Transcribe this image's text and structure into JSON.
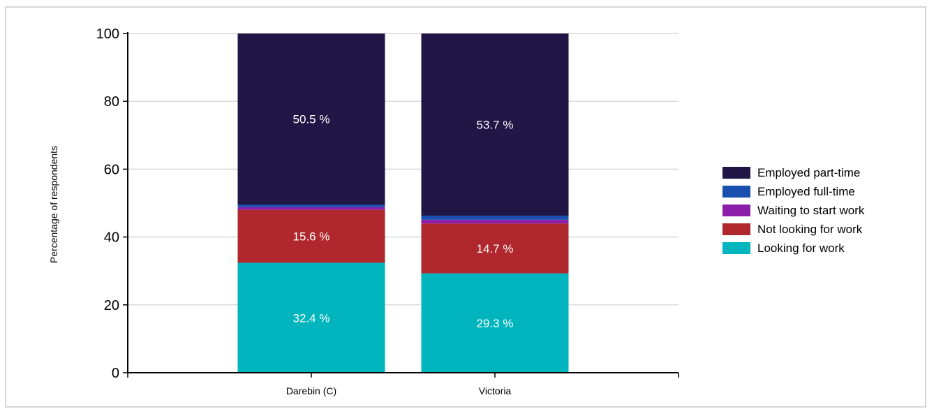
{
  "chart_data": {
    "type": "bar",
    "stacked": true,
    "categories": [
      "Darebin (C)",
      "Victoria"
    ],
    "ylabel": "Percentage of respondents",
    "xlabel": "",
    "ylim": [
      0,
      100
    ],
    "yticks": [
      0,
      20,
      40,
      60,
      80,
      100
    ],
    "grid": true,
    "legend_position": "right",
    "series": [
      {
        "name": "Looking for work",
        "color": "#00b5bd",
        "values": [
          32.4,
          29.3
        ],
        "labels": [
          "32.4 %",
          "29.3 %"
        ]
      },
      {
        "name": "Not looking for work",
        "color": "#b0272e",
        "values": [
          15.6,
          14.7
        ],
        "labels": [
          "15.6 %",
          "14.7 %"
        ]
      },
      {
        "name": "Waiting to start work",
        "color": "#8b1fa9",
        "values": [
          0.8,
          1.1
        ],
        "labels": [
          "",
          ""
        ]
      },
      {
        "name": "Employed full-time",
        "color": "#1950b0",
        "values": [
          0.7,
          1.2
        ],
        "labels": [
          "",
          ""
        ]
      },
      {
        "name": "Employed part-time",
        "color": "#201747",
        "values": [
          50.5,
          53.7
        ],
        "labels": [
          "50.5 %",
          "53.7 %"
        ]
      }
    ]
  }
}
